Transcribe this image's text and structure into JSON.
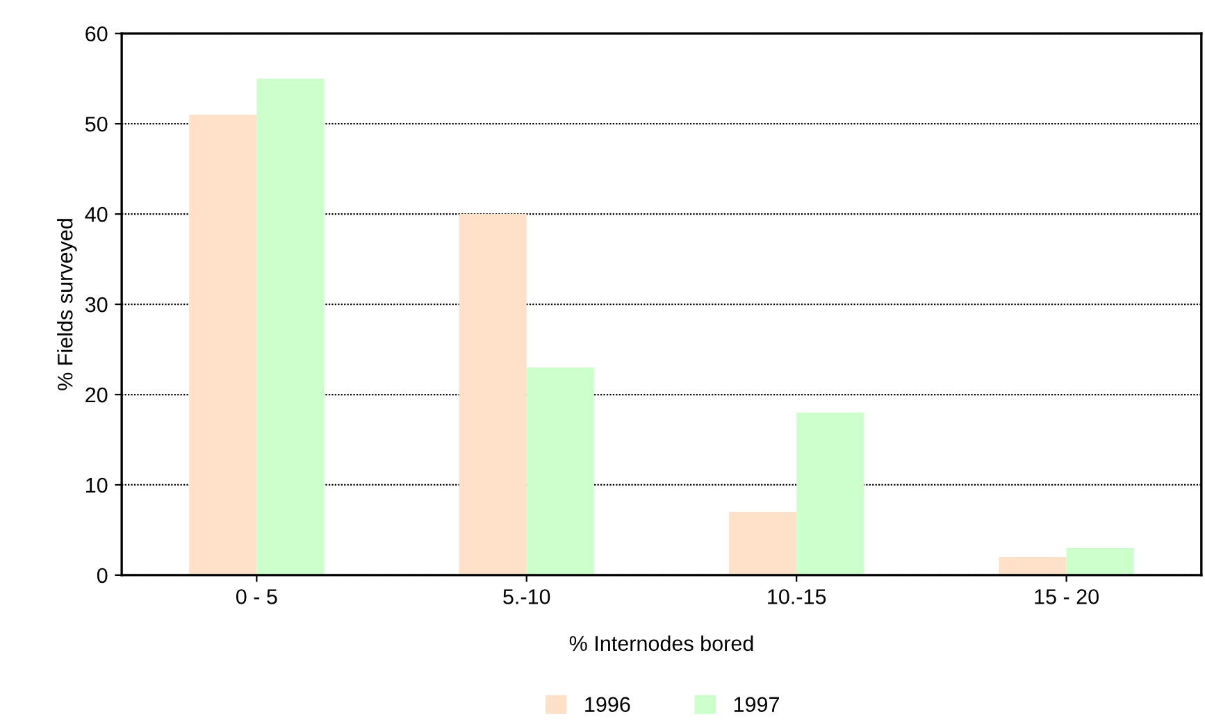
{
  "chart_data": {
    "type": "bar",
    "xlabel": "% Internodes bored",
    "ylabel": "% Fields surveyed",
    "categories": [
      "0 - 5",
      "5.-10",
      "10.-15",
      "15 - 20"
    ],
    "series": [
      {
        "name": "1996",
        "color": "#ffe0c8",
        "values": [
          51,
          40,
          7,
          2
        ]
      },
      {
        "name": "1997",
        "color": "#ccffcc",
        "values": [
          55,
          23,
          18,
          3
        ]
      }
    ],
    "ylim": [
      0,
      60
    ],
    "yticks": [
      0,
      10,
      20,
      30,
      40,
      50,
      60
    ],
    "grid": "y",
    "legend": "bottom"
  }
}
